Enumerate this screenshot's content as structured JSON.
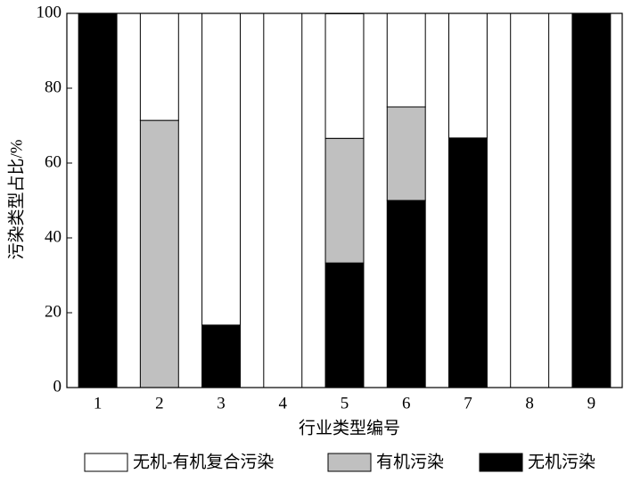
{
  "chart_data": {
    "type": "stacked_bar",
    "x_label": "行业类型编号",
    "y_label": "污染类型占比/%",
    "categories": [
      "1",
      "2",
      "3",
      "4",
      "5",
      "6",
      "7",
      "8",
      "9"
    ],
    "series": [
      {
        "name": "无机-有机复合污染",
        "color": "#ffffff",
        "values": [
          0,
          28.6,
          83.3,
          100,
          33.3,
          25,
          33.3,
          100,
          0
        ]
      },
      {
        "name": "有机污染",
        "color": "#c0c0c0",
        "values": [
          0,
          71.4,
          0,
          0,
          33.3,
          25,
          0,
          0,
          0
        ]
      },
      {
        "name": "无机污染",
        "color": "#000000",
        "values": [
          100,
          0,
          16.7,
          0,
          33.3,
          50,
          66.7,
          0,
          100
        ]
      }
    ],
    "ylim": [
      0,
      100
    ],
    "yticks": [
      0,
      20,
      40,
      60,
      80,
      100
    ]
  }
}
